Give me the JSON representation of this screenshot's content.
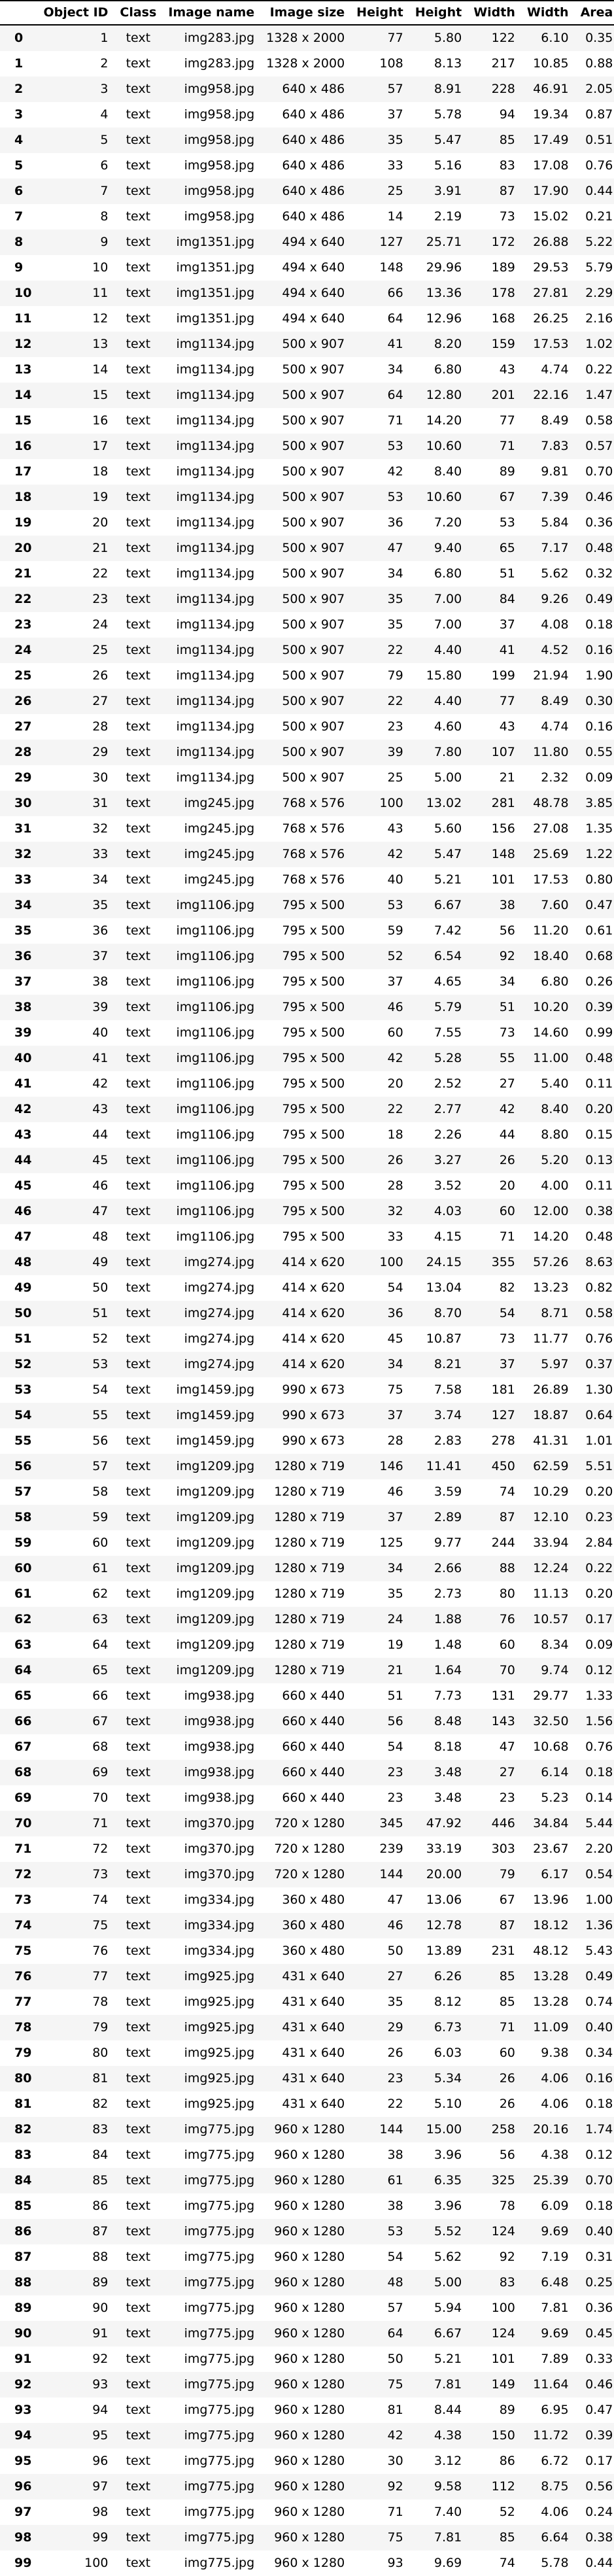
{
  "columns": [
    "",
    "Object ID",
    "Class",
    "Image name",
    "Image size",
    "Height",
    "Height",
    "Width",
    "Width",
    "Area"
  ],
  "rows": [
    [
      "0",
      "1",
      "text",
      "img283.jpg",
      "1328 x 2000",
      "77",
      "5.80",
      "122",
      "6.10",
      "0.35"
    ],
    [
      "1",
      "2",
      "text",
      "img283.jpg",
      "1328 x 2000",
      "108",
      "8.13",
      "217",
      "10.85",
      "0.88"
    ],
    [
      "2",
      "3",
      "text",
      "img958.jpg",
      "640 x 486",
      "57",
      "8.91",
      "228",
      "46.91",
      "2.05"
    ],
    [
      "3",
      "4",
      "text",
      "img958.jpg",
      "640 x 486",
      "37",
      "5.78",
      "94",
      "19.34",
      "0.87"
    ],
    [
      "4",
      "5",
      "text",
      "img958.jpg",
      "640 x 486",
      "35",
      "5.47",
      "85",
      "17.49",
      "0.51"
    ],
    [
      "5",
      "6",
      "text",
      "img958.jpg",
      "640 x 486",
      "33",
      "5.16",
      "83",
      "17.08",
      "0.76"
    ],
    [
      "6",
      "7",
      "text",
      "img958.jpg",
      "640 x 486",
      "25",
      "3.91",
      "87",
      "17.90",
      "0.44"
    ],
    [
      "7",
      "8",
      "text",
      "img958.jpg",
      "640 x 486",
      "14",
      "2.19",
      "73",
      "15.02",
      "0.21"
    ],
    [
      "8",
      "9",
      "text",
      "img1351.jpg",
      "494 x 640",
      "127",
      "25.71",
      "172",
      "26.88",
      "5.22"
    ],
    [
      "9",
      "10",
      "text",
      "img1351.jpg",
      "494 x 640",
      "148",
      "29.96",
      "189",
      "29.53",
      "5.79"
    ],
    [
      "10",
      "11",
      "text",
      "img1351.jpg",
      "494 x 640",
      "66",
      "13.36",
      "178",
      "27.81",
      "2.29"
    ],
    [
      "11",
      "12",
      "text",
      "img1351.jpg",
      "494 x 640",
      "64",
      "12.96",
      "168",
      "26.25",
      "2.16"
    ],
    [
      "12",
      "13",
      "text",
      "img1134.jpg",
      "500 x 907",
      "41",
      "8.20",
      "159",
      "17.53",
      "1.02"
    ],
    [
      "13",
      "14",
      "text",
      "img1134.jpg",
      "500 x 907",
      "34",
      "6.80",
      "43",
      "4.74",
      "0.22"
    ],
    [
      "14",
      "15",
      "text",
      "img1134.jpg",
      "500 x 907",
      "64",
      "12.80",
      "201",
      "22.16",
      "1.47"
    ],
    [
      "15",
      "16",
      "text",
      "img1134.jpg",
      "500 x 907",
      "71",
      "14.20",
      "77",
      "8.49",
      "0.58"
    ],
    [
      "16",
      "17",
      "text",
      "img1134.jpg",
      "500 x 907",
      "53",
      "10.60",
      "71",
      "7.83",
      "0.57"
    ],
    [
      "17",
      "18",
      "text",
      "img1134.jpg",
      "500 x 907",
      "42",
      "8.40",
      "89",
      "9.81",
      "0.70"
    ],
    [
      "18",
      "19",
      "text",
      "img1134.jpg",
      "500 x 907",
      "53",
      "10.60",
      "67",
      "7.39",
      "0.46"
    ],
    [
      "19",
      "20",
      "text",
      "img1134.jpg",
      "500 x 907",
      "36",
      "7.20",
      "53",
      "5.84",
      "0.36"
    ],
    [
      "20",
      "21",
      "text",
      "img1134.jpg",
      "500 x 907",
      "47",
      "9.40",
      "65",
      "7.17",
      "0.48"
    ],
    [
      "21",
      "22",
      "text",
      "img1134.jpg",
      "500 x 907",
      "34",
      "6.80",
      "51",
      "5.62",
      "0.32"
    ],
    [
      "22",
      "23",
      "text",
      "img1134.jpg",
      "500 x 907",
      "35",
      "7.00",
      "84",
      "9.26",
      "0.49"
    ],
    [
      "23",
      "24",
      "text",
      "img1134.jpg",
      "500 x 907",
      "35",
      "7.00",
      "37",
      "4.08",
      "0.18"
    ],
    [
      "24",
      "25",
      "text",
      "img1134.jpg",
      "500 x 907",
      "22",
      "4.40",
      "41",
      "4.52",
      "0.16"
    ],
    [
      "25",
      "26",
      "text",
      "img1134.jpg",
      "500 x 907",
      "79",
      "15.80",
      "199",
      "21.94",
      "1.90"
    ],
    [
      "26",
      "27",
      "text",
      "img1134.jpg",
      "500 x 907",
      "22",
      "4.40",
      "77",
      "8.49",
      "0.30"
    ],
    [
      "27",
      "28",
      "text",
      "img1134.jpg",
      "500 x 907",
      "23",
      "4.60",
      "43",
      "4.74",
      "0.16"
    ],
    [
      "28",
      "29",
      "text",
      "img1134.jpg",
      "500 x 907",
      "39",
      "7.80",
      "107",
      "11.80",
      "0.55"
    ],
    [
      "29",
      "30",
      "text",
      "img1134.jpg",
      "500 x 907",
      "25",
      "5.00",
      "21",
      "2.32",
      "0.09"
    ],
    [
      "30",
      "31",
      "text",
      "img245.jpg",
      "768 x 576",
      "100",
      "13.02",
      "281",
      "48.78",
      "3.85"
    ],
    [
      "31",
      "32",
      "text",
      "img245.jpg",
      "768 x 576",
      "43",
      "5.60",
      "156",
      "27.08",
      "1.35"
    ],
    [
      "32",
      "33",
      "text",
      "img245.jpg",
      "768 x 576",
      "42",
      "5.47",
      "148",
      "25.69",
      "1.22"
    ],
    [
      "33",
      "34",
      "text",
      "img245.jpg",
      "768 x 576",
      "40",
      "5.21",
      "101",
      "17.53",
      "0.80"
    ],
    [
      "34",
      "35",
      "text",
      "img1106.jpg",
      "795 x 500",
      "53",
      "6.67",
      "38",
      "7.60",
      "0.47"
    ],
    [
      "35",
      "36",
      "text",
      "img1106.jpg",
      "795 x 500",
      "59",
      "7.42",
      "56",
      "11.20",
      "0.61"
    ],
    [
      "36",
      "37",
      "text",
      "img1106.jpg",
      "795 x 500",
      "52",
      "6.54",
      "92",
      "18.40",
      "0.68"
    ],
    [
      "37",
      "38",
      "text",
      "img1106.jpg",
      "795 x 500",
      "37",
      "4.65",
      "34",
      "6.80",
      "0.26"
    ],
    [
      "38",
      "39",
      "text",
      "img1106.jpg",
      "795 x 500",
      "46",
      "5.79",
      "51",
      "10.20",
      "0.39"
    ],
    [
      "39",
      "40",
      "text",
      "img1106.jpg",
      "795 x 500",
      "60",
      "7.55",
      "73",
      "14.60",
      "0.99"
    ],
    [
      "40",
      "41",
      "text",
      "img1106.jpg",
      "795 x 500",
      "42",
      "5.28",
      "55",
      "11.00",
      "0.48"
    ],
    [
      "41",
      "42",
      "text",
      "img1106.jpg",
      "795 x 500",
      "20",
      "2.52",
      "27",
      "5.40",
      "0.11"
    ],
    [
      "42",
      "43",
      "text",
      "img1106.jpg",
      "795 x 500",
      "22",
      "2.77",
      "42",
      "8.40",
      "0.20"
    ],
    [
      "43",
      "44",
      "text",
      "img1106.jpg",
      "795 x 500",
      "18",
      "2.26",
      "44",
      "8.80",
      "0.15"
    ],
    [
      "44",
      "45",
      "text",
      "img1106.jpg",
      "795 x 500",
      "26",
      "3.27",
      "26",
      "5.20",
      "0.13"
    ],
    [
      "45",
      "46",
      "text",
      "img1106.jpg",
      "795 x 500",
      "28",
      "3.52",
      "20",
      "4.00",
      "0.11"
    ],
    [
      "46",
      "47",
      "text",
      "img1106.jpg",
      "795 x 500",
      "32",
      "4.03",
      "60",
      "12.00",
      "0.38"
    ],
    [
      "47",
      "48",
      "text",
      "img1106.jpg",
      "795 x 500",
      "33",
      "4.15",
      "71",
      "14.20",
      "0.48"
    ],
    [
      "48",
      "49",
      "text",
      "img274.jpg",
      "414 x 620",
      "100",
      "24.15",
      "355",
      "57.26",
      "8.63"
    ],
    [
      "49",
      "50",
      "text",
      "img274.jpg",
      "414 x 620",
      "54",
      "13.04",
      "82",
      "13.23",
      "0.82"
    ],
    [
      "50",
      "51",
      "text",
      "img274.jpg",
      "414 x 620",
      "36",
      "8.70",
      "54",
      "8.71",
      "0.58"
    ],
    [
      "51",
      "52",
      "text",
      "img274.jpg",
      "414 x 620",
      "45",
      "10.87",
      "73",
      "11.77",
      "0.76"
    ],
    [
      "52",
      "53",
      "text",
      "img274.jpg",
      "414 x 620",
      "34",
      "8.21",
      "37",
      "5.97",
      "0.37"
    ],
    [
      "53",
      "54",
      "text",
      "img1459.jpg",
      "990 x 673",
      "75",
      "7.58",
      "181",
      "26.89",
      "1.30"
    ],
    [
      "54",
      "55",
      "text",
      "img1459.jpg",
      "990 x 673",
      "37",
      "3.74",
      "127",
      "18.87",
      "0.64"
    ],
    [
      "55",
      "56",
      "text",
      "img1459.jpg",
      "990 x 673",
      "28",
      "2.83",
      "278",
      "41.31",
      "1.01"
    ],
    [
      "56",
      "57",
      "text",
      "img1209.jpg",
      "1280 x 719",
      "146",
      "11.41",
      "450",
      "62.59",
      "5.51"
    ],
    [
      "57",
      "58",
      "text",
      "img1209.jpg",
      "1280 x 719",
      "46",
      "3.59",
      "74",
      "10.29",
      "0.20"
    ],
    [
      "58",
      "59",
      "text",
      "img1209.jpg",
      "1280 x 719",
      "37",
      "2.89",
      "87",
      "12.10",
      "0.23"
    ],
    [
      "59",
      "60",
      "text",
      "img1209.jpg",
      "1280 x 719",
      "125",
      "9.77",
      "244",
      "33.94",
      "2.84"
    ],
    [
      "60",
      "61",
      "text",
      "img1209.jpg",
      "1280 x 719",
      "34",
      "2.66",
      "88",
      "12.24",
      "0.22"
    ],
    [
      "61",
      "62",
      "text",
      "img1209.jpg",
      "1280 x 719",
      "35",
      "2.73",
      "80",
      "11.13",
      "0.20"
    ],
    [
      "62",
      "63",
      "text",
      "img1209.jpg",
      "1280 x 719",
      "24",
      "1.88",
      "76",
      "10.57",
      "0.17"
    ],
    [
      "63",
      "64",
      "text",
      "img1209.jpg",
      "1280 x 719",
      "19",
      "1.48",
      "60",
      "8.34",
      "0.09"
    ],
    [
      "64",
      "65",
      "text",
      "img1209.jpg",
      "1280 x 719",
      "21",
      "1.64",
      "70",
      "9.74",
      "0.12"
    ],
    [
      "65",
      "66",
      "text",
      "img938.jpg",
      "660 x 440",
      "51",
      "7.73",
      "131",
      "29.77",
      "1.33"
    ],
    [
      "66",
      "67",
      "text",
      "img938.jpg",
      "660 x 440",
      "56",
      "8.48",
      "143",
      "32.50",
      "1.56"
    ],
    [
      "67",
      "68",
      "text",
      "img938.jpg",
      "660 x 440",
      "54",
      "8.18",
      "47",
      "10.68",
      "0.76"
    ],
    [
      "68",
      "69",
      "text",
      "img938.jpg",
      "660 x 440",
      "23",
      "3.48",
      "27",
      "6.14",
      "0.18"
    ],
    [
      "69",
      "70",
      "text",
      "img938.jpg",
      "660 x 440",
      "23",
      "3.48",
      "23",
      "5.23",
      "0.14"
    ],
    [
      "70",
      "71",
      "text",
      "img370.jpg",
      "720 x 1280",
      "345",
      "47.92",
      "446",
      "34.84",
      "5.44"
    ],
    [
      "71",
      "72",
      "text",
      "img370.jpg",
      "720 x 1280",
      "239",
      "33.19",
      "303",
      "23.67",
      "2.20"
    ],
    [
      "72",
      "73",
      "text",
      "img370.jpg",
      "720 x 1280",
      "144",
      "20.00",
      "79",
      "6.17",
      "0.54"
    ],
    [
      "73",
      "74",
      "text",
      "img334.jpg",
      "360 x 480",
      "47",
      "13.06",
      "67",
      "13.96",
      "1.00"
    ],
    [
      "74",
      "75",
      "text",
      "img334.jpg",
      "360 x 480",
      "46",
      "12.78",
      "87",
      "18.12",
      "1.36"
    ],
    [
      "75",
      "76",
      "text",
      "img334.jpg",
      "360 x 480",
      "50",
      "13.89",
      "231",
      "48.12",
      "5.43"
    ],
    [
      "76",
      "77",
      "text",
      "img925.jpg",
      "431 x 640",
      "27",
      "6.26",
      "85",
      "13.28",
      "0.49"
    ],
    [
      "77",
      "78",
      "text",
      "img925.jpg",
      "431 x 640",
      "35",
      "8.12",
      "85",
      "13.28",
      "0.74"
    ],
    [
      "78",
      "79",
      "text",
      "img925.jpg",
      "431 x 640",
      "29",
      "6.73",
      "71",
      "11.09",
      "0.40"
    ],
    [
      "79",
      "80",
      "text",
      "img925.jpg",
      "431 x 640",
      "26",
      "6.03",
      "60",
      "9.38",
      "0.34"
    ],
    [
      "80",
      "81",
      "text",
      "img925.jpg",
      "431 x 640",
      "23",
      "5.34",
      "26",
      "4.06",
      "0.16"
    ],
    [
      "81",
      "82",
      "text",
      "img925.jpg",
      "431 x 640",
      "22",
      "5.10",
      "26",
      "4.06",
      "0.18"
    ],
    [
      "82",
      "83",
      "text",
      "img775.jpg",
      "960 x 1280",
      "144",
      "15.00",
      "258",
      "20.16",
      "1.74"
    ],
    [
      "83",
      "84",
      "text",
      "img775.jpg",
      "960 x 1280",
      "38",
      "3.96",
      "56",
      "4.38",
      "0.12"
    ],
    [
      "84",
      "85",
      "text",
      "img775.jpg",
      "960 x 1280",
      "61",
      "6.35",
      "325",
      "25.39",
      "0.70"
    ],
    [
      "85",
      "86",
      "text",
      "img775.jpg",
      "960 x 1280",
      "38",
      "3.96",
      "78",
      "6.09",
      "0.18"
    ],
    [
      "86",
      "87",
      "text",
      "img775.jpg",
      "960 x 1280",
      "53",
      "5.52",
      "124",
      "9.69",
      "0.40"
    ],
    [
      "87",
      "88",
      "text",
      "img775.jpg",
      "960 x 1280",
      "54",
      "5.62",
      "92",
      "7.19",
      "0.31"
    ],
    [
      "88",
      "89",
      "text",
      "img775.jpg",
      "960 x 1280",
      "48",
      "5.00",
      "83",
      "6.48",
      "0.25"
    ],
    [
      "89",
      "90",
      "text",
      "img775.jpg",
      "960 x 1280",
      "57",
      "5.94",
      "100",
      "7.81",
      "0.36"
    ],
    [
      "90",
      "91",
      "text",
      "img775.jpg",
      "960 x 1280",
      "64",
      "6.67",
      "124",
      "9.69",
      "0.45"
    ],
    [
      "91",
      "92",
      "text",
      "img775.jpg",
      "960 x 1280",
      "50",
      "5.21",
      "101",
      "7.89",
      "0.33"
    ],
    [
      "92",
      "93",
      "text",
      "img775.jpg",
      "960 x 1280",
      "75",
      "7.81",
      "149",
      "11.64",
      "0.46"
    ],
    [
      "93",
      "94",
      "text",
      "img775.jpg",
      "960 x 1280",
      "81",
      "8.44",
      "89",
      "6.95",
      "0.47"
    ],
    [
      "94",
      "95",
      "text",
      "img775.jpg",
      "960 x 1280",
      "42",
      "4.38",
      "150",
      "11.72",
      "0.39"
    ],
    [
      "95",
      "96",
      "text",
      "img775.jpg",
      "960 x 1280",
      "30",
      "3.12",
      "86",
      "6.72",
      "0.17"
    ],
    [
      "96",
      "97",
      "text",
      "img775.jpg",
      "960 x 1280",
      "92",
      "9.58",
      "112",
      "8.75",
      "0.56"
    ],
    [
      "97",
      "98",
      "text",
      "img775.jpg",
      "960 x 1280",
      "71",
      "7.40",
      "52",
      "4.06",
      "0.24"
    ],
    [
      "98",
      "99",
      "text",
      "img775.jpg",
      "960 x 1280",
      "75",
      "7.81",
      "85",
      "6.64",
      "0.38"
    ],
    [
      "99",
      "100",
      "text",
      "img775.jpg",
      "960 x 1280",
      "93",
      "9.69",
      "74",
      "5.78",
      "0.44"
    ]
  ]
}
